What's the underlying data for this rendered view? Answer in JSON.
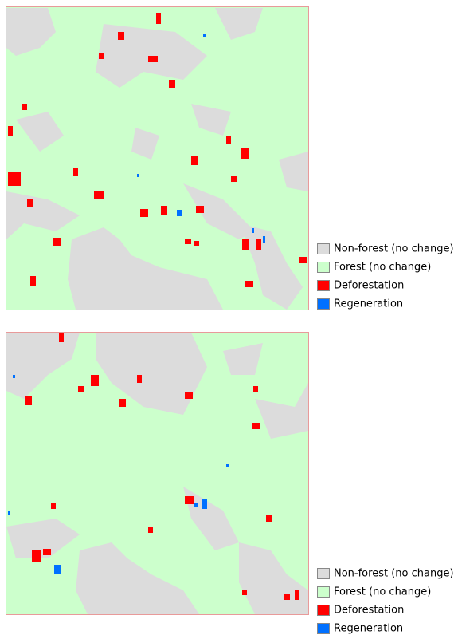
{
  "maps": [
    {
      "legend": [
        {
          "label": "Non-forest (no change)",
          "color": "#dcdcdc"
        },
        {
          "label": "Forest (no change)",
          "color": "#ccffcc"
        },
        {
          "label": "Deforestation",
          "color": "#ff0000"
        },
        {
          "label": "Regeneration",
          "color": "#0070ff"
        }
      ]
    },
    {
      "legend": [
        {
          "label": "Non-forest (no change)",
          "color": "#dcdcdc"
        },
        {
          "label": "Forest (no change)",
          "color": "#ccffcc"
        },
        {
          "label": "Deforestation",
          "color": "#ff0000"
        },
        {
          "label": "Regeneration",
          "color": "#0070ff"
        }
      ]
    }
  ]
}
